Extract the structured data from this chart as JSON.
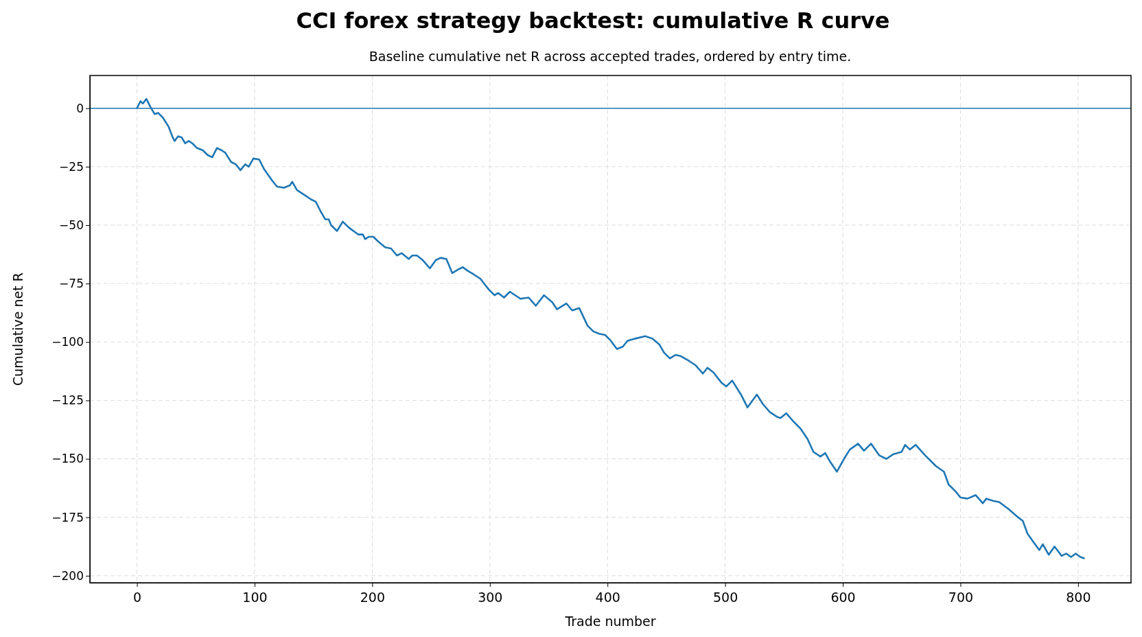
{
  "chart_data": {
    "type": "line",
    "title": "CCI forex strategy backtest: cumulative R curve",
    "subtitle": "Baseline cumulative net R across accepted trades, ordered by entry time.",
    "xlabel": "Trade number",
    "ylabel": "Cumulative net R",
    "xlim": [
      -40,
      845
    ],
    "xticks": [
      0,
      100,
      200,
      300,
      400,
      500,
      600,
      700,
      800
    ],
    "ylim": [
      -203,
      14
    ],
    "yticks": [
      0,
      -25,
      -50,
      -75,
      -100,
      -125,
      -150,
      -175,
      -200
    ],
    "grid": true,
    "marker": "none",
    "line_style": "solid",
    "ref_lines": [
      {
        "axis": "y",
        "value": 0,
        "color": "#1f77b4",
        "line_style": "solid"
      }
    ],
    "series": [
      {
        "color": "#1f77b4",
        "x": [
          0,
          3,
          5,
          8,
          12,
          15,
          18,
          22,
          27,
          30,
          32,
          35,
          38,
          41,
          44,
          47,
          51,
          56,
          60,
          64,
          68,
          72,
          75,
          80,
          84,
          88,
          92,
          95,
          99,
          104,
          108,
          115,
          119,
          125,
          130,
          132,
          136,
          142,
          148,
          152,
          156,
          160,
          163,
          165,
          170,
          175,
          180,
          188,
          192,
          194,
          197,
          201,
          205,
          211,
          216,
          221,
          225,
          231,
          234,
          238,
          243,
          249,
          254,
          258,
          263,
          268,
          273,
          277,
          281,
          286,
          292,
          299,
          304,
          307,
          312,
          317,
          326,
          333,
          339,
          346,
          353,
          357,
          365,
          370,
          376,
          383,
          388,
          393,
          398,
          402,
          408,
          413,
          417,
          424,
          432,
          438,
          444,
          448,
          453,
          458,
          462,
          469,
          475,
          481,
          485,
          490,
          497,
          501,
          506,
          514,
          519,
          527,
          532,
          538,
          544,
          547,
          552,
          558,
          564,
          570,
          575,
          581,
          585,
          589,
          595,
          601,
          606,
          613,
          618,
          624,
          631,
          637,
          643,
          650,
          653,
          657,
          662,
          670,
          679,
          686,
          690,
          696,
          700,
          706,
          713,
          719,
          722,
          728,
          733,
          741,
          749,
          753,
          757,
          762,
          767,
          770,
          775,
          780,
          786,
          790,
          794,
          798,
          802,
          805
        ],
        "values": [
          0,
          3,
          2,
          4,
          0,
          -2.5,
          -2,
          -4,
          -8,
          -12,
          -14,
          -12,
          -12.5,
          -15,
          -14,
          -15,
          -17,
          -18,
          -20,
          -21,
          -17,
          -18,
          -19,
          -23,
          -24,
          -26.5,
          -24,
          -25,
          -21.5,
          -22,
          -26,
          -31,
          -33.5,
          -34,
          -33,
          -31.5,
          -35,
          -37,
          -39,
          -40,
          -44,
          -47.5,
          -47.5,
          -50,
          -52.5,
          -48.5,
          -51,
          -54,
          -54,
          -56,
          -55,
          -55,
          -57,
          -59.5,
          -60,
          -63,
          -62,
          -64.5,
          -63,
          -63,
          -65,
          -68.5,
          -65,
          -64,
          -64.5,
          -70.5,
          -69,
          -68,
          -69.5,
          -71,
          -73,
          -77.5,
          -80,
          -79,
          -81,
          -78.5,
          -81.5,
          -81,
          -84.5,
          -80,
          -83,
          -86,
          -83.5,
          -86.5,
          -85.5,
          -93,
          -95.5,
          -96.5,
          -97,
          -99,
          -103,
          -102,
          -99.5,
          -98.5,
          -97.5,
          -98.5,
          -101,
          -104.5,
          -107,
          -105.5,
          -106,
          -108,
          -110,
          -113.5,
          -111,
          -113,
          -117.5,
          -119,
          -116.5,
          -123,
          -128,
          -122.5,
          -126.5,
          -130,
          -132,
          -132.5,
          -130.5,
          -134,
          -137,
          -141.5,
          -147,
          -149,
          -147.5,
          -151,
          -155.5,
          -150,
          -146,
          -143.5,
          -146.5,
          -143.5,
          -148.5,
          -150,
          -148,
          -147,
          -144,
          -146,
          -144,
          -148.5,
          -153,
          -155.5,
          -161,
          -164,
          -166.5,
          -167,
          -165.5,
          -169,
          -167,
          -168,
          -168.5,
          -171.5,
          -175,
          -176.5,
          -182,
          -185.5,
          -189,
          -186.5,
          -191,
          -187.5,
          -191.5,
          -190.5,
          -192,
          -190.5,
          -192,
          -192.5
        ]
      }
    ]
  }
}
